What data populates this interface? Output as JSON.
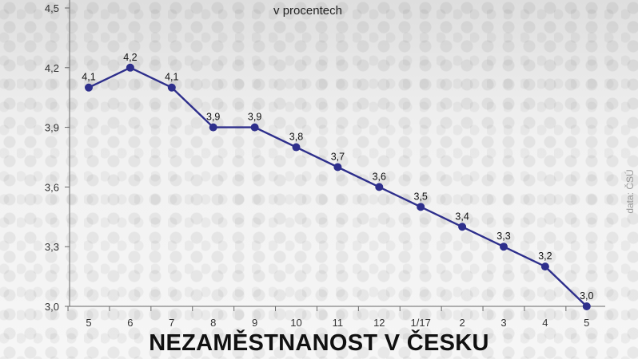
{
  "chart_data": {
    "type": "line",
    "title": "NEZAMĚSTNANOST V ČESKU",
    "subtitle": "v procentech",
    "source": "data: ČSÚ",
    "categories": [
      "5",
      "6",
      "7",
      "8",
      "9",
      "10",
      "11",
      "12",
      "1/17",
      "2",
      "3",
      "4",
      "5"
    ],
    "series": [
      {
        "values": [
          4.1,
          4.2,
          4.1,
          3.9,
          3.9,
          3.8,
          3.7,
          3.6,
          3.5,
          3.4,
          3.3,
          3.2,
          3.0
        ],
        "labels": [
          "4,1",
          "4,2",
          "4,1",
          "3,9",
          "3,9",
          "3,8",
          "3,7",
          "3,6",
          "3,5",
          "3,4",
          "3,3",
          "3,2",
          "3,0"
        ]
      }
    ],
    "y_ticks": [
      "3,0",
      "3,3",
      "3,6",
      "3,9",
      "4,2",
      "4,5"
    ],
    "ylim": [
      3.0,
      4.5
    ],
    "grid": false,
    "line_color": "#2e2f8c"
  }
}
